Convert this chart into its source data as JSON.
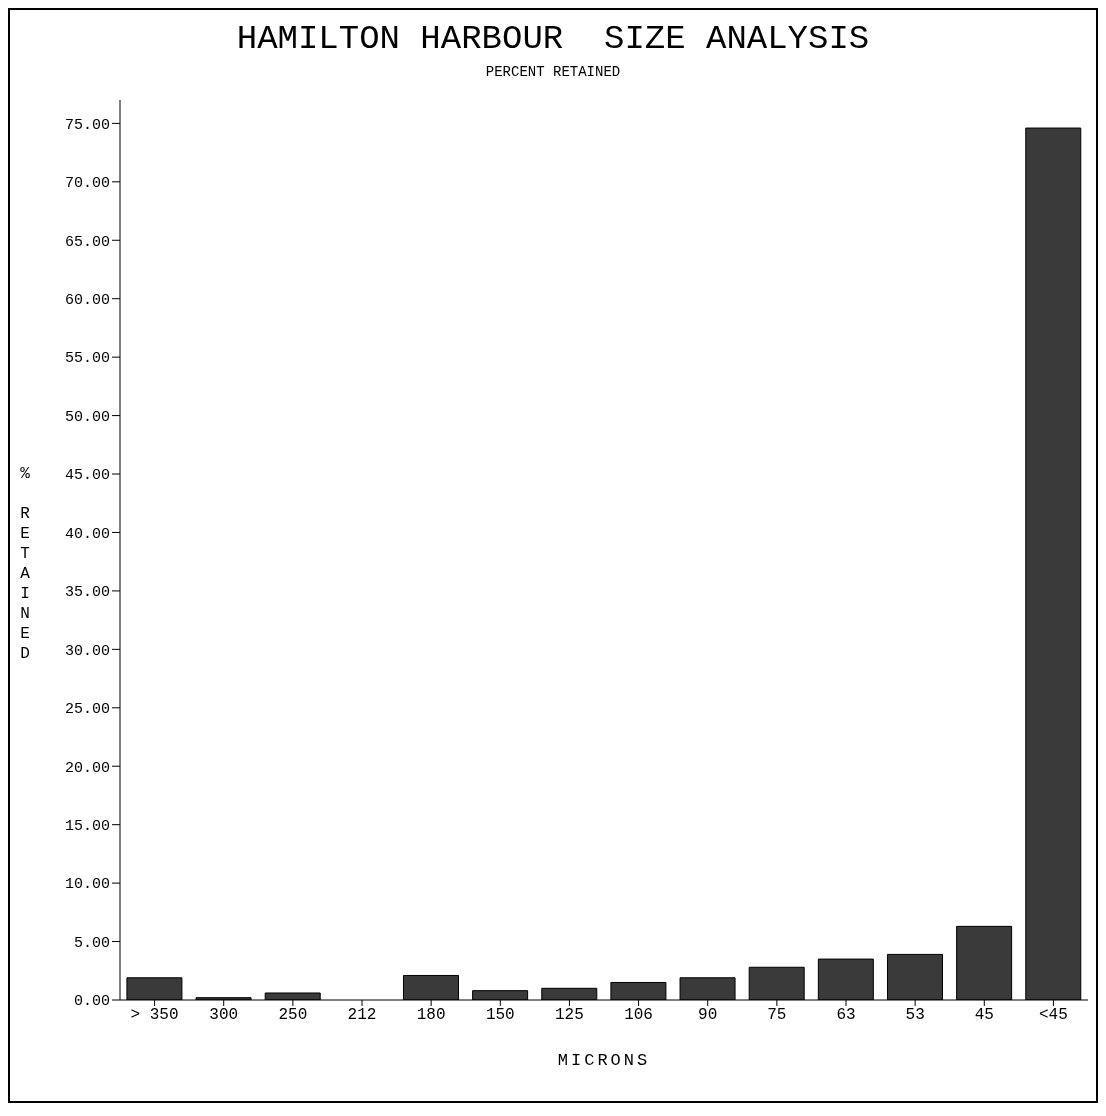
{
  "chart_data": {
    "type": "bar",
    "title": "HAMILTON HARBOUR  SIZE ANALYSIS",
    "subtitle": "PERCENT RETAINED",
    "xlabel": "MICRONS",
    "ylabel": "% RETAINED",
    "categories": [
      "> 350",
      "300",
      "250",
      "212",
      "180",
      "150",
      "125",
      "106",
      "90",
      "75",
      "63",
      "53",
      "45",
      "<45"
    ],
    "values": [
      1.9,
      0.2,
      0.6,
      0,
      2.1,
      0.8,
      1.0,
      1.5,
      1.9,
      2.8,
      3.5,
      3.9,
      6.3,
      74.6
    ],
    "color": "#3a3a3a",
    "ylim": [
      0,
      77
    ],
    "yticks": [
      {
        "value": 0,
        "label": "0.00"
      },
      {
        "value": 5,
        "label": "5.00"
      },
      {
        "value": 10,
        "label": "10.00"
      },
      {
        "value": 15,
        "label": "15.00"
      },
      {
        "value": 20,
        "label": "20.00"
      },
      {
        "value": 25,
        "label": "25.00"
      },
      {
        "value": 30,
        "label": "30.00"
      },
      {
        "value": 35,
        "label": "35.00"
      },
      {
        "value": 40,
        "label": "40.00"
      },
      {
        "value": 45,
        "label": "45.00"
      },
      {
        "value": 50,
        "label": "50.00"
      },
      {
        "value": 55,
        "label": "55.00"
      },
      {
        "value": 60,
        "label": "60.00"
      },
      {
        "value": 65,
        "label": "65.00"
      },
      {
        "value": 70,
        "label": "70.00"
      },
      {
        "value": 75,
        "label": "75.00"
      }
    ],
    "grid": false,
    "legend": false
  }
}
